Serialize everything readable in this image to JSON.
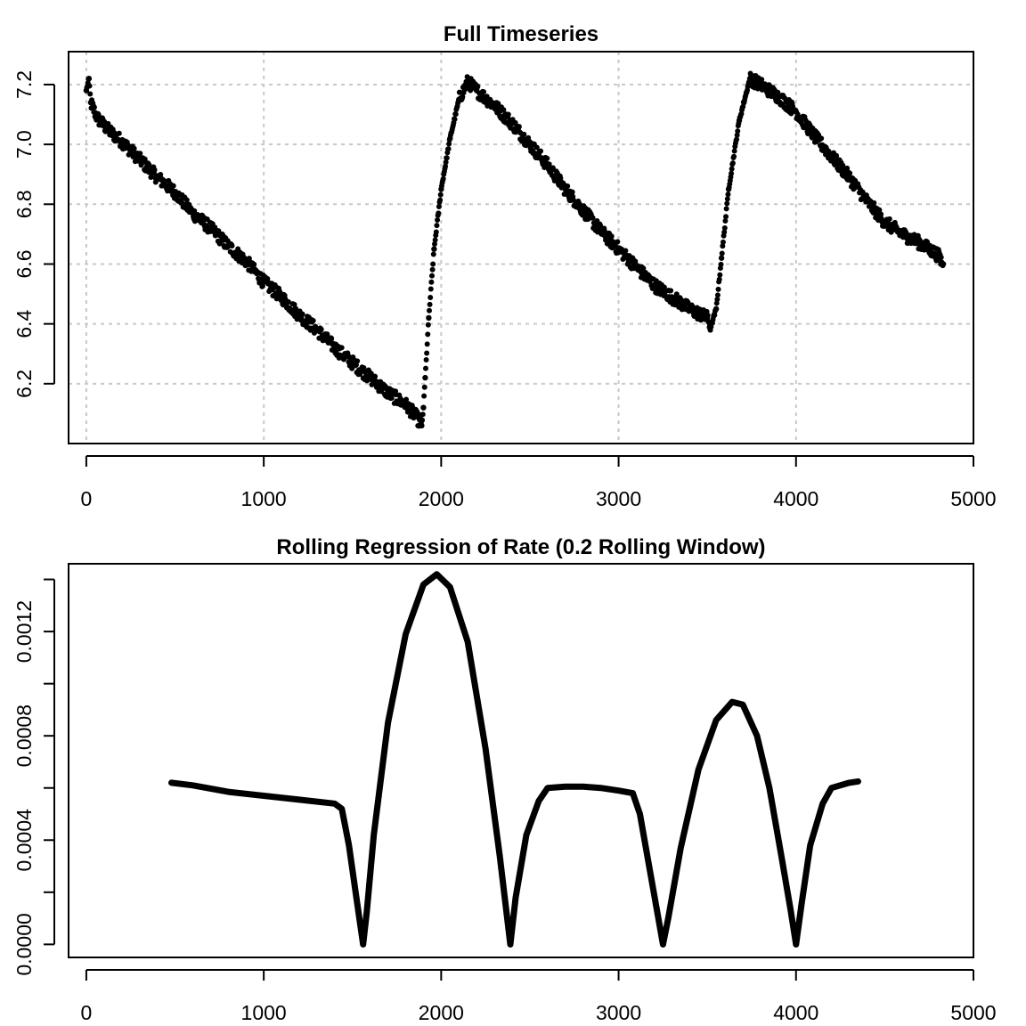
{
  "chart_data": [
    {
      "type": "scatter",
      "title": "Full Timeseries",
      "xlabel": "",
      "ylabel": "",
      "xlim": [
        -100,
        5000
      ],
      "ylim": [
        6.0,
        7.31
      ],
      "xticks": [
        0,
        1000,
        2000,
        3000,
        4000,
        5000
      ],
      "xtick_labels": [
        "0",
        "1000",
        "2000",
        "3000",
        "4000",
        "5000"
      ],
      "yticks": [
        6.2,
        6.4,
        6.6,
        6.8,
        7.0,
        7.2
      ],
      "ytick_labels": [
        "6.2",
        "6.4",
        "6.6",
        "6.8",
        "7.0",
        "7.2"
      ],
      "grid": true,
      "marker_color": "#000000",
      "grid_color": "#c8c8c8",
      "series": [
        {
          "x": [
            0,
            15,
            25,
            60,
            120,
            200,
            300,
            400,
            500,
            600,
            700,
            800,
            900,
            1000,
            1100,
            1200,
            1300,
            1400,
            1500,
            1600,
            1700,
            1800,
            1860,
            1890,
            1900,
            1910,
            1930,
            1960,
            2000,
            2050,
            2100,
            2150,
            2200,
            2300,
            2400,
            2500,
            2600,
            2700,
            2800,
            2900,
            3000,
            3100,
            3200,
            3300,
            3400,
            3500,
            3520,
            3550,
            3580,
            3620,
            3680,
            3740,
            3800,
            3900,
            4000,
            4100,
            4200,
            4300,
            4400,
            4500,
            4600,
            4700,
            4800,
            4830
          ],
          "y": [
            7.18,
            7.22,
            7.14,
            7.09,
            7.05,
            7.01,
            6.95,
            6.89,
            6.84,
            6.77,
            6.72,
            6.66,
            6.61,
            6.54,
            6.49,
            6.43,
            6.38,
            6.32,
            6.27,
            6.22,
            6.17,
            6.13,
            6.09,
            6.06,
            6.12,
            6.22,
            6.42,
            6.65,
            6.85,
            7.02,
            7.15,
            7.21,
            7.18,
            7.13,
            7.07,
            7.0,
            6.93,
            6.85,
            6.78,
            6.71,
            6.65,
            6.59,
            6.53,
            6.49,
            6.45,
            6.42,
            6.39,
            6.45,
            6.62,
            6.85,
            7.08,
            7.22,
            7.2,
            7.16,
            7.11,
            7.03,
            6.96,
            6.89,
            6.81,
            6.74,
            6.7,
            6.67,
            6.63,
            6.6
          ]
        }
      ]
    },
    {
      "type": "line",
      "title": "Rolling Regression of Rate (0.2 Rolling Window)",
      "xlabel": "",
      "ylabel": "",
      "xlim": [
        -100,
        5000
      ],
      "ylim": [
        -5e-05,
        0.00146
      ],
      "xticks": [
        0,
        1000,
        2000,
        3000,
        4000,
        5000
      ],
      "xtick_labels": [
        "0",
        "1000",
        "2000",
        "3000",
        "4000",
        "5000"
      ],
      "yticks": [
        0.0,
        0.0002,
        0.0004,
        0.0006,
        0.0008,
        0.001,
        0.0012,
        0.0014
      ],
      "ytick_labels": [
        "0.0000",
        "",
        "0.0004",
        "",
        "0.0008",
        "",
        "0.0012",
        ""
      ],
      "grid": false,
      "line_color": "#000000",
      "series": [
        {
          "x": [
            480,
            600,
            800,
            1000,
            1200,
            1400,
            1440,
            1480,
            1520,
            1560,
            1580,
            1620,
            1700,
            1800,
            1900,
            1975,
            2050,
            2150,
            2250,
            2330,
            2390,
            2420,
            2480,
            2550,
            2600,
            2700,
            2800,
            2900,
            3000,
            3080,
            3120,
            3180,
            3250,
            3280,
            3350,
            3450,
            3550,
            3640,
            3700,
            3780,
            3850,
            3920,
            3970,
            4000,
            4030,
            4080,
            4150,
            4200,
            4300,
            4350
          ],
          "y": [
            0.00062,
            0.00061,
            0.000585,
            0.00057,
            0.000555,
            0.00054,
            0.00052,
            0.00038,
            0.00019,
            0.0,
            0.00012,
            0.00042,
            0.00085,
            0.00119,
            0.00138,
            0.00142,
            0.00137,
            0.00116,
            0.00075,
            0.00034,
            0.0,
            0.00018,
            0.00042,
            0.00055,
            0.0006,
            0.000605,
            0.000605,
            0.0006,
            0.00059,
            0.00058,
            0.0005,
            0.00027,
            0.0,
            0.0001,
            0.00037,
            0.00067,
            0.00086,
            0.00093,
            0.00092,
            0.0008,
            0.0006,
            0.00033,
            0.00013,
            0.0,
            0.00015,
            0.00038,
            0.00054,
            0.0006,
            0.00062,
            0.000625
          ]
        }
      ]
    }
  ]
}
